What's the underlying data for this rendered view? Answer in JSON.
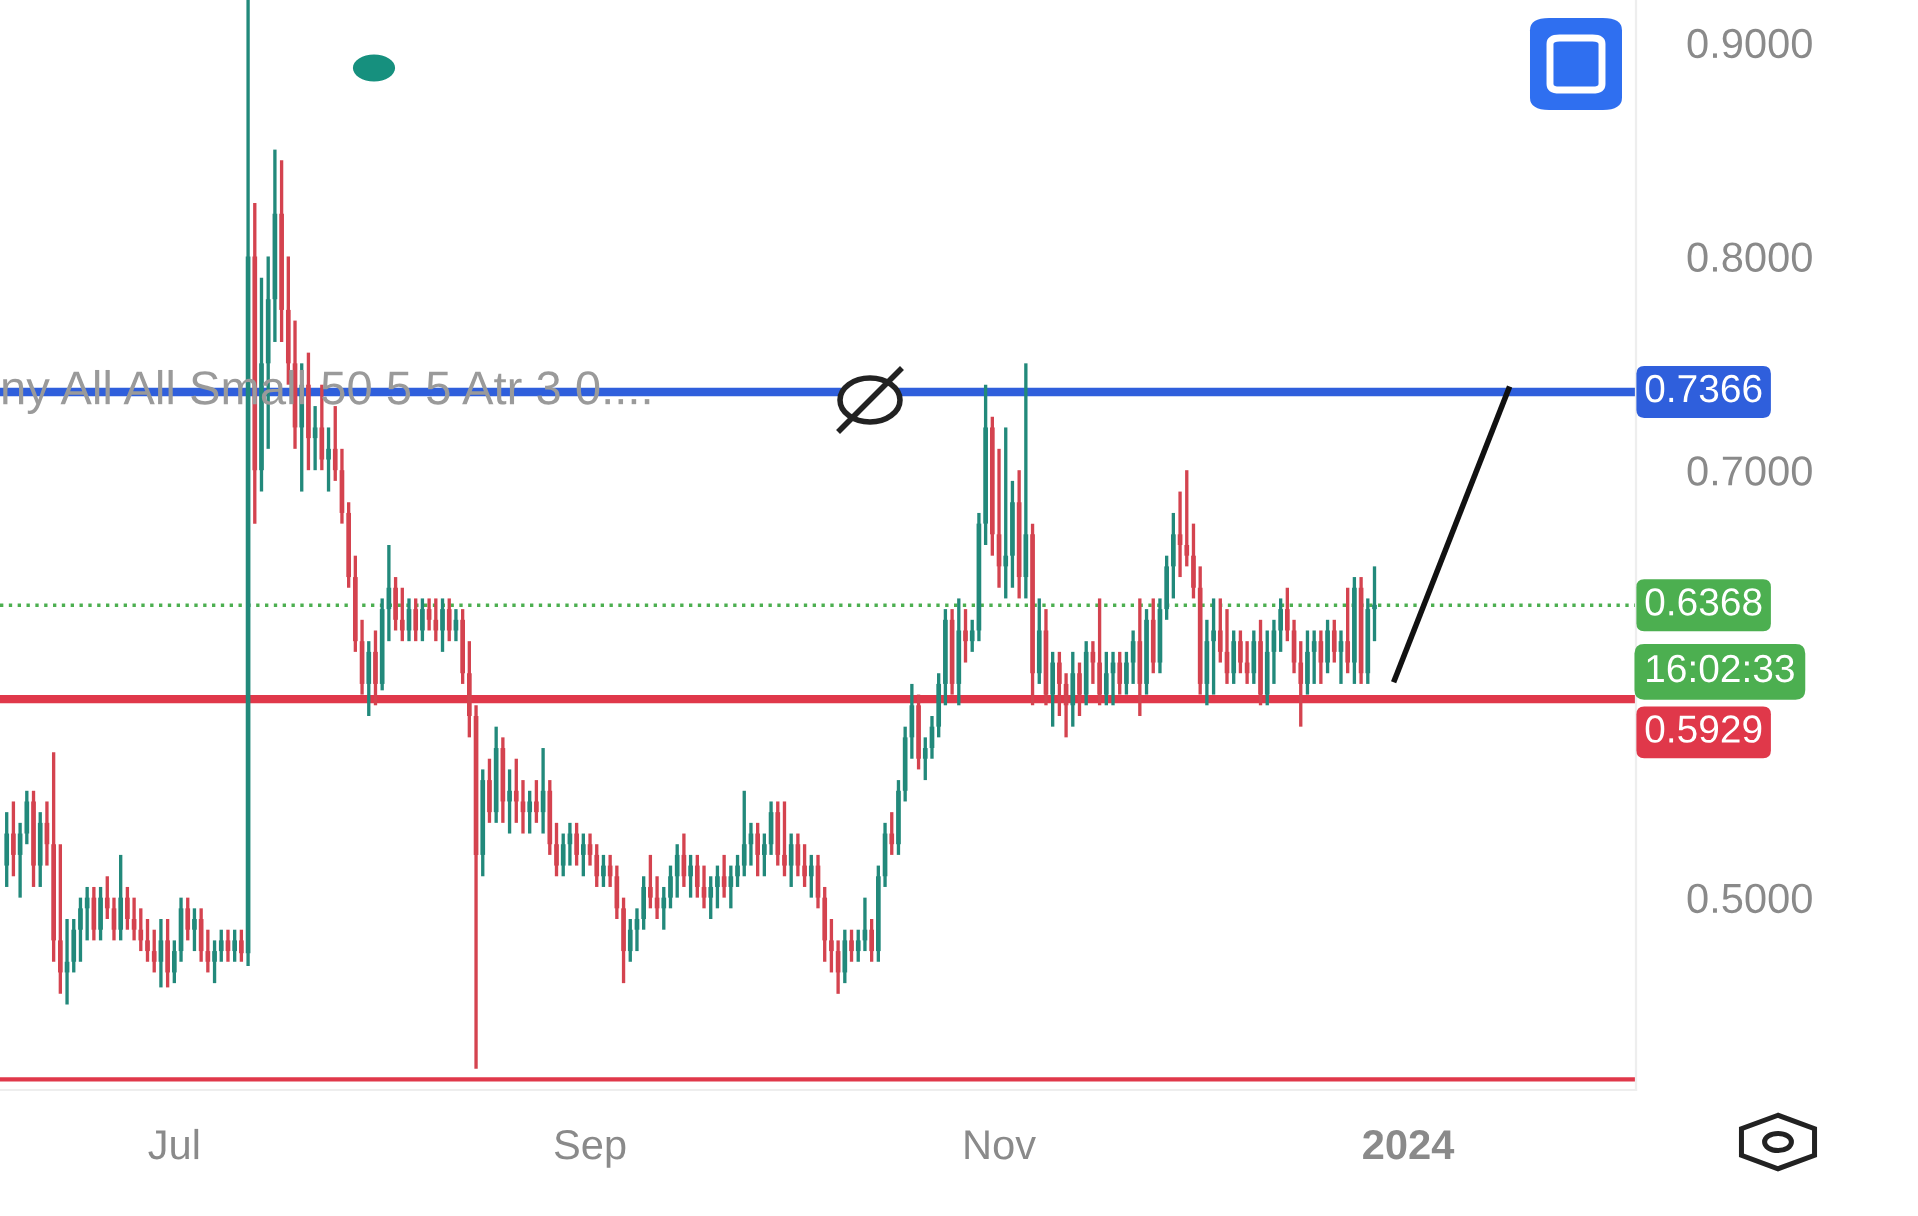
{
  "chart_data": {
    "type": "candlestick",
    "x": [
      "2023-06-06",
      "2023-06-07",
      "2023-06-08",
      "2023-06-09",
      "2023-06-10",
      "2023-06-11",
      "2023-06-12",
      "2023-06-13",
      "2023-06-14",
      "2023-06-15",
      "2023-06-16",
      "2023-06-17",
      "2023-06-18",
      "2023-06-19",
      "2023-06-20",
      "2023-06-21",
      "2023-06-22",
      "2023-06-23",
      "2023-06-24",
      "2023-06-25",
      "2023-06-26",
      "2023-06-27",
      "2023-06-28",
      "2023-06-29",
      "2023-06-30",
      "2023-07-01",
      "2023-07-02",
      "2023-07-03",
      "2023-07-04",
      "2023-07-05",
      "2023-07-06",
      "2023-07-07",
      "2023-07-08",
      "2023-07-09",
      "2023-07-10",
      "2023-07-11",
      "2023-07-12",
      "2023-07-13",
      "2023-07-14",
      "2023-07-15",
      "2023-07-16",
      "2023-07-17",
      "2023-07-18",
      "2023-07-19",
      "2023-07-20",
      "2023-07-21",
      "2023-07-22",
      "2023-07-23",
      "2023-07-24",
      "2023-07-25",
      "2023-07-26",
      "2023-07-27",
      "2023-07-28",
      "2023-07-29",
      "2023-07-30",
      "2023-07-31",
      "2023-08-01",
      "2023-08-02",
      "2023-08-03",
      "2023-08-04",
      "2023-08-05",
      "2023-08-06",
      "2023-08-07",
      "2023-08-08",
      "2023-08-09",
      "2023-08-10",
      "2023-08-11",
      "2023-08-12",
      "2023-08-13",
      "2023-08-14",
      "2023-08-15",
      "2023-08-16",
      "2023-08-17",
      "2023-08-18",
      "2023-08-19",
      "2023-08-20",
      "2023-08-21",
      "2023-08-22",
      "2023-08-23",
      "2023-08-24",
      "2023-08-25",
      "2023-08-26",
      "2023-08-27",
      "2023-08-28",
      "2023-08-29",
      "2023-08-30",
      "2023-08-31",
      "2023-09-01",
      "2023-09-02",
      "2023-09-03",
      "2023-09-04",
      "2023-09-05",
      "2023-09-06",
      "2023-09-07",
      "2023-09-08",
      "2023-09-09",
      "2023-09-10",
      "2023-09-11",
      "2023-09-12",
      "2023-09-13",
      "2023-09-14",
      "2023-09-15",
      "2023-09-16",
      "2023-09-17",
      "2023-09-18",
      "2023-09-19",
      "2023-09-20",
      "2023-09-21",
      "2023-09-22",
      "2023-09-23",
      "2023-09-24",
      "2023-09-25",
      "2023-09-26",
      "2023-09-27",
      "2023-09-28",
      "2023-09-29",
      "2023-09-30",
      "2023-10-01",
      "2023-10-02",
      "2023-10-03",
      "2023-10-04",
      "2023-10-05",
      "2023-10-06",
      "2023-10-07",
      "2023-10-08",
      "2023-10-09",
      "2023-10-10",
      "2023-10-11",
      "2023-10-12",
      "2023-10-13",
      "2023-10-14",
      "2023-10-15",
      "2023-10-16",
      "2023-10-17",
      "2023-10-18",
      "2023-10-19",
      "2023-10-20",
      "2023-10-21",
      "2023-10-22",
      "2023-10-23",
      "2023-10-24",
      "2023-10-25",
      "2023-10-26",
      "2023-10-27",
      "2023-10-28",
      "2023-10-29",
      "2023-10-30",
      "2023-10-31",
      "2023-11-01",
      "2023-11-02",
      "2023-11-03",
      "2023-11-04",
      "2023-11-05",
      "2023-11-06",
      "2023-11-07",
      "2023-11-08",
      "2023-11-09",
      "2023-11-10",
      "2023-11-11",
      "2023-11-12",
      "2023-11-13",
      "2023-11-14",
      "2023-11-15",
      "2023-11-16",
      "2023-11-17",
      "2023-11-18",
      "2023-11-19",
      "2023-11-20",
      "2023-11-21",
      "2023-11-22",
      "2023-11-23",
      "2023-11-24",
      "2023-11-25",
      "2023-11-26",
      "2023-11-27",
      "2023-11-28",
      "2023-11-29",
      "2023-11-30",
      "2023-12-01",
      "2023-12-02",
      "2023-12-03",
      "2023-12-04",
      "2023-12-05",
      "2023-12-06",
      "2023-12-07",
      "2023-12-08",
      "2023-12-09",
      "2023-12-10",
      "2023-12-11",
      "2023-12-12",
      "2023-12-13",
      "2023-12-14",
      "2023-12-15",
      "2023-12-16",
      "2023-12-17",
      "2023-12-18",
      "2023-12-19",
      "2023-12-20",
      "2023-12-21",
      "2023-12-22",
      "2023-12-23",
      "2023-12-24",
      "2023-12-25",
      "2023-12-26",
      "2023-12-27"
    ],
    "ohlc": [
      [
        0.515,
        0.54,
        0.505,
        0.53
      ],
      [
        0.53,
        0.545,
        0.51,
        0.52
      ],
      [
        0.52,
        0.535,
        0.5,
        0.53
      ],
      [
        0.53,
        0.55,
        0.525,
        0.545
      ],
      [
        0.545,
        0.55,
        0.505,
        0.515
      ],
      [
        0.515,
        0.54,
        0.505,
        0.535
      ],
      [
        0.535,
        0.545,
        0.515,
        0.525
      ],
      [
        0.525,
        0.568,
        0.47,
        0.48
      ],
      [
        0.48,
        0.525,
        0.455,
        0.465
      ],
      [
        0.465,
        0.49,
        0.45,
        0.47
      ],
      [
        0.47,
        0.49,
        0.465,
        0.485
      ],
      [
        0.485,
        0.5,
        0.47,
        0.495
      ],
      [
        0.495,
        0.505,
        0.48,
        0.5
      ],
      [
        0.5,
        0.505,
        0.48,
        0.485
      ],
      [
        0.485,
        0.505,
        0.48,
        0.5
      ],
      [
        0.5,
        0.51,
        0.49,
        0.495
      ],
      [
        0.495,
        0.5,
        0.48,
        0.485
      ],
      [
        0.485,
        0.52,
        0.48,
        0.5
      ],
      [
        0.5,
        0.505,
        0.485,
        0.49
      ],
      [
        0.49,
        0.5,
        0.48,
        0.485
      ],
      [
        0.485,
        0.495,
        0.475,
        0.48
      ],
      [
        0.48,
        0.49,
        0.47,
        0.475
      ],
      [
        0.475,
        0.485,
        0.465,
        0.47
      ],
      [
        0.47,
        0.49,
        0.458,
        0.48
      ],
      [
        0.48,
        0.49,
        0.458,
        0.465
      ],
      [
        0.465,
        0.48,
        0.46,
        0.475
      ],
      [
        0.475,
        0.5,
        0.47,
        0.495
      ],
      [
        0.495,
        0.5,
        0.48,
        0.485
      ],
      [
        0.485,
        0.495,
        0.475,
        0.49
      ],
      [
        0.49,
        0.495,
        0.47,
        0.475
      ],
      [
        0.475,
        0.485,
        0.465,
        0.47
      ],
      [
        0.47,
        0.48,
        0.46,
        0.475
      ],
      [
        0.475,
        0.485,
        0.47,
        0.48
      ],
      [
        0.48,
        0.485,
        0.47,
        0.475
      ],
      [
        0.475,
        0.485,
        0.47,
        0.48
      ],
      [
        0.48,
        0.485,
        0.47,
        0.474
      ],
      [
        0.474,
        0.92,
        0.468,
        0.8
      ],
      [
        0.8,
        0.825,
        0.675,
        0.7
      ],
      [
        0.7,
        0.79,
        0.69,
        0.75
      ],
      [
        0.75,
        0.8,
        0.71,
        0.78
      ],
      [
        0.78,
        0.85,
        0.76,
        0.82
      ],
      [
        0.82,
        0.845,
        0.76,
        0.775
      ],
      [
        0.775,
        0.8,
        0.74,
        0.75
      ],
      [
        0.75,
        0.77,
        0.71,
        0.72
      ],
      [
        0.72,
        0.75,
        0.69,
        0.74
      ],
      [
        0.74,
        0.755,
        0.7,
        0.715
      ],
      [
        0.715,
        0.73,
        0.7,
        0.72
      ],
      [
        0.72,
        0.74,
        0.7,
        0.705
      ],
      [
        0.705,
        0.72,
        0.69,
        0.71
      ],
      [
        0.71,
        0.73,
        0.695,
        0.7
      ],
      [
        0.7,
        0.71,
        0.675,
        0.68
      ],
      [
        0.68,
        0.685,
        0.645,
        0.65
      ],
      [
        0.65,
        0.66,
        0.615,
        0.62
      ],
      [
        0.62,
        0.63,
        0.595,
        0.6
      ],
      [
        0.6,
        0.62,
        0.585,
        0.615
      ],
      [
        0.615,
        0.625,
        0.59,
        0.6
      ],
      [
        0.6,
        0.64,
        0.597,
        0.635
      ],
      [
        0.635,
        0.665,
        0.62,
        0.645
      ],
      [
        0.645,
        0.65,
        0.625,
        0.63
      ],
      [
        0.63,
        0.645,
        0.62,
        0.625
      ],
      [
        0.625,
        0.64,
        0.62,
        0.635
      ],
      [
        0.635,
        0.64,
        0.62,
        0.625
      ],
      [
        0.625,
        0.64,
        0.62,
        0.635
      ],
      [
        0.635,
        0.64,
        0.625,
        0.63
      ],
      [
        0.63,
        0.64,
        0.62,
        0.625
      ],
      [
        0.625,
        0.64,
        0.615,
        0.635
      ],
      [
        0.635,
        0.64,
        0.62,
        0.625
      ],
      [
        0.625,
        0.635,
        0.62,
        0.63
      ],
      [
        0.63,
        0.635,
        0.6,
        0.605
      ],
      [
        0.605,
        0.62,
        0.575,
        0.585
      ],
      [
        0.585,
        0.59,
        0.42,
        0.52
      ],
      [
        0.52,
        0.56,
        0.51,
        0.555
      ],
      [
        0.555,
        0.565,
        0.535,
        0.54
      ],
      [
        0.54,
        0.58,
        0.535,
        0.57
      ],
      [
        0.57,
        0.575,
        0.535,
        0.545
      ],
      [
        0.545,
        0.56,
        0.53,
        0.55
      ],
      [
        0.55,
        0.565,
        0.535,
        0.545
      ],
      [
        0.545,
        0.555,
        0.53,
        0.54
      ],
      [
        0.54,
        0.55,
        0.53,
        0.545
      ],
      [
        0.545,
        0.555,
        0.535,
        0.54
      ],
      [
        0.54,
        0.57,
        0.53,
        0.55
      ],
      [
        0.55,
        0.555,
        0.52,
        0.525
      ],
      [
        0.525,
        0.535,
        0.51,
        0.515
      ],
      [
        0.515,
        0.53,
        0.51,
        0.525
      ],
      [
        0.525,
        0.535,
        0.515,
        0.53
      ],
      [
        0.53,
        0.535,
        0.515,
        0.52
      ],
      [
        0.52,
        0.53,
        0.51,
        0.525
      ],
      [
        0.525,
        0.53,
        0.515,
        0.52
      ],
      [
        0.52,
        0.525,
        0.505,
        0.51
      ],
      [
        0.51,
        0.52,
        0.505,
        0.515
      ],
      [
        0.515,
        0.52,
        0.505,
        0.51
      ],
      [
        0.51,
        0.515,
        0.49,
        0.495
      ],
      [
        0.495,
        0.5,
        0.46,
        0.475
      ],
      [
        0.475,
        0.49,
        0.47,
        0.485
      ],
      [
        0.485,
        0.495,
        0.475,
        0.49
      ],
      [
        0.49,
        0.51,
        0.485,
        0.505
      ],
      [
        0.505,
        0.52,
        0.495,
        0.5
      ],
      [
        0.5,
        0.51,
        0.49,
        0.495
      ],
      [
        0.495,
        0.505,
        0.485,
        0.5
      ],
      [
        0.5,
        0.515,
        0.495,
        0.51
      ],
      [
        0.51,
        0.525,
        0.5,
        0.52
      ],
      [
        0.52,
        0.53,
        0.505,
        0.51
      ],
      [
        0.51,
        0.52,
        0.5,
        0.515
      ],
      [
        0.515,
        0.52,
        0.5,
        0.505
      ],
      [
        0.505,
        0.515,
        0.495,
        0.5
      ],
      [
        0.5,
        0.51,
        0.49,
        0.505
      ],
      [
        0.505,
        0.515,
        0.495,
        0.51
      ],
      [
        0.51,
        0.52,
        0.5,
        0.505
      ],
      [
        0.505,
        0.515,
        0.495,
        0.51
      ],
      [
        0.51,
        0.52,
        0.505,
        0.515
      ],
      [
        0.515,
        0.55,
        0.51,
        0.525
      ],
      [
        0.525,
        0.535,
        0.515,
        0.53
      ],
      [
        0.53,
        0.535,
        0.51,
        0.52
      ],
      [
        0.52,
        0.53,
        0.51,
        0.525
      ],
      [
        0.525,
        0.545,
        0.52,
        0.54
      ],
      [
        0.54,
        0.545,
        0.515,
        0.52
      ],
      [
        0.52,
        0.545,
        0.51,
        0.515
      ],
      [
        0.515,
        0.53,
        0.505,
        0.525
      ],
      [
        0.525,
        0.53,
        0.51,
        0.515
      ],
      [
        0.515,
        0.525,
        0.505,
        0.51
      ],
      [
        0.51,
        0.52,
        0.5,
        0.515
      ],
      [
        0.515,
        0.52,
        0.495,
        0.5
      ],
      [
        0.5,
        0.505,
        0.47,
        0.48
      ],
      [
        0.48,
        0.49,
        0.465,
        0.475
      ],
      [
        0.475,
        0.48,
        0.455,
        0.465
      ],
      [
        0.465,
        0.485,
        0.46,
        0.48
      ],
      [
        0.48,
        0.485,
        0.47,
        0.475
      ],
      [
        0.475,
        0.485,
        0.47,
        0.48
      ],
      [
        0.48,
        0.5,
        0.475,
        0.485
      ],
      [
        0.485,
        0.49,
        0.47,
        0.475
      ],
      [
        0.475,
        0.515,
        0.47,
        0.51
      ],
      [
        0.51,
        0.535,
        0.505,
        0.53
      ],
      [
        0.53,
        0.54,
        0.52,
        0.525
      ],
      [
        0.525,
        0.555,
        0.52,
        0.55
      ],
      [
        0.55,
        0.58,
        0.545,
        0.575
      ],
      [
        0.575,
        0.6,
        0.565,
        0.59
      ],
      [
        0.59,
        0.595,
        0.56,
        0.565
      ],
      [
        0.565,
        0.575,
        0.555,
        0.57
      ],
      [
        0.57,
        0.585,
        0.565,
        0.58
      ],
      [
        0.58,
        0.605,
        0.575,
        0.6
      ],
      [
        0.6,
        0.635,
        0.59,
        0.63
      ],
      [
        0.63,
        0.635,
        0.595,
        0.6
      ],
      [
        0.6,
        0.64,
        0.59,
        0.625
      ],
      [
        0.625,
        0.635,
        0.61,
        0.62
      ],
      [
        0.62,
        0.63,
        0.615,
        0.625
      ],
      [
        0.625,
        0.68,
        0.62,
        0.675
      ],
      [
        0.675,
        0.74,
        0.665,
        0.72
      ],
      [
        0.72,
        0.725,
        0.66,
        0.67
      ],
      [
        0.67,
        0.71,
        0.645,
        0.655
      ],
      [
        0.655,
        0.72,
        0.64,
        0.66
      ],
      [
        0.66,
        0.695,
        0.645,
        0.685
      ],
      [
        0.685,
        0.7,
        0.64,
        0.65
      ],
      [
        0.65,
        0.75,
        0.64,
        0.67
      ],
      [
        0.67,
        0.675,
        0.59,
        0.605
      ],
      [
        0.605,
        0.64,
        0.6,
        0.625
      ],
      [
        0.625,
        0.635,
        0.59,
        0.595
      ],
      [
        0.595,
        0.615,
        0.58,
        0.61
      ],
      [
        0.61,
        0.615,
        0.585,
        0.6
      ],
      [
        0.6,
        0.605,
        0.575,
        0.59
      ],
      [
        0.59,
        0.615,
        0.58,
        0.605
      ],
      [
        0.605,
        0.61,
        0.585,
        0.595
      ],
      [
        0.595,
        0.62,
        0.59,
        0.615
      ],
      [
        0.615,
        0.62,
        0.6,
        0.61
      ],
      [
        0.61,
        0.64,
        0.59,
        0.595
      ],
      [
        0.595,
        0.615,
        0.59,
        0.605
      ],
      [
        0.605,
        0.615,
        0.59,
        0.61
      ],
      [
        0.61,
        0.615,
        0.595,
        0.6
      ],
      [
        0.6,
        0.615,
        0.595,
        0.61
      ],
      [
        0.61,
        0.625,
        0.6,
        0.62
      ],
      [
        0.62,
        0.64,
        0.585,
        0.6
      ],
      [
        0.6,
        0.635,
        0.595,
        0.63
      ],
      [
        0.63,
        0.64,
        0.605,
        0.61
      ],
      [
        0.61,
        0.64,
        0.605,
        0.635
      ],
      [
        0.635,
        0.66,
        0.63,
        0.655
      ],
      [
        0.655,
        0.68,
        0.64,
        0.67
      ],
      [
        0.67,
        0.69,
        0.65,
        0.665
      ],
      [
        0.665,
        0.7,
        0.655,
        0.66
      ],
      [
        0.66,
        0.675,
        0.64,
        0.645
      ],
      [
        0.645,
        0.655,
        0.595,
        0.6
      ],
      [
        0.6,
        0.63,
        0.59,
        0.62
      ],
      [
        0.62,
        0.64,
        0.595,
        0.625
      ],
      [
        0.625,
        0.64,
        0.61,
        0.615
      ],
      [
        0.615,
        0.635,
        0.6,
        0.605
      ],
      [
        0.605,
        0.625,
        0.6,
        0.62
      ],
      [
        0.62,
        0.625,
        0.605,
        0.61
      ],
      [
        0.61,
        0.62,
        0.6,
        0.605
      ],
      [
        0.605,
        0.625,
        0.6,
        0.62
      ],
      [
        0.62,
        0.63,
        0.59,
        0.595
      ],
      [
        0.595,
        0.625,
        0.59,
        0.615
      ],
      [
        0.615,
        0.63,
        0.6,
        0.625
      ],
      [
        0.625,
        0.64,
        0.615,
        0.635
      ],
      [
        0.635,
        0.645,
        0.62,
        0.625
      ],
      [
        0.625,
        0.63,
        0.605,
        0.61
      ],
      [
        0.61,
        0.62,
        0.58,
        0.6
      ],
      [
        0.6,
        0.625,
        0.595,
        0.615
      ],
      [
        0.615,
        0.625,
        0.6,
        0.62
      ],
      [
        0.62,
        0.625,
        0.6,
        0.61
      ],
      [
        0.61,
        0.63,
        0.605,
        0.625
      ],
      [
        0.625,
        0.63,
        0.61,
        0.615
      ],
      [
        0.615,
        0.625,
        0.6,
        0.62
      ],
      [
        0.62,
        0.645,
        0.605,
        0.61
      ],
      [
        0.61,
        0.65,
        0.6,
        0.645
      ],
      [
        0.645,
        0.65,
        0.6,
        0.605
      ],
      [
        0.605,
        0.64,
        0.6,
        0.635
      ],
      [
        0.635,
        0.655,
        0.62,
        0.637
      ]
    ],
    "series": [
      {
        "type": "line",
        "x": [
          "2023-12-30",
          "2024-01-16"
        ],
        "values": [
          0.602,
          0.738
        ],
        "color": "#111111"
      }
    ],
    "xlim": [
      "2023-06-05",
      "2024-02-04"
    ],
    "xticks": [
      {
        "value": "2023-07-01",
        "label": "Jul"
      },
      {
        "value": "2023-09-01",
        "label": "Sep"
      },
      {
        "value": "2023-11-01",
        "label": "Nov"
      },
      {
        "value": "2024-01-01",
        "label": "2024"
      }
    ],
    "ylim": [
      0.41,
      0.92
    ],
    "yticks": [
      {
        "value": 0.5,
        "label": "0.5000"
      },
      {
        "value": 0.7,
        "label": "0.7000"
      },
      {
        "value": 0.8,
        "label": "0.8000"
      },
      {
        "value": 0.9,
        "label": "0.9000"
      }
    ],
    "ref_lines": [
      {
        "axis": "y",
        "value": 0.7366,
        "label": "0.7366",
        "color": "#2f5fdc",
        "line_style": "solid"
      },
      {
        "axis": "y",
        "value": 0.6368,
        "label": "0.6368",
        "color": "#4caf50",
        "line_style": "dotted"
      },
      {
        "axis": "y",
        "value": 0.5929,
        "label": "0.5929",
        "color": "#e0384a",
        "line_style": "solid"
      },
      {
        "axis": "y",
        "value": 0.415,
        "label": null,
        "color": "#e0384a",
        "line_style": "solid"
      }
    ],
    "annotations": [
      "ny All All Small 50 5 5 Atr 3 0....",
      "16:02:33"
    ],
    "grid": false
  }
}
